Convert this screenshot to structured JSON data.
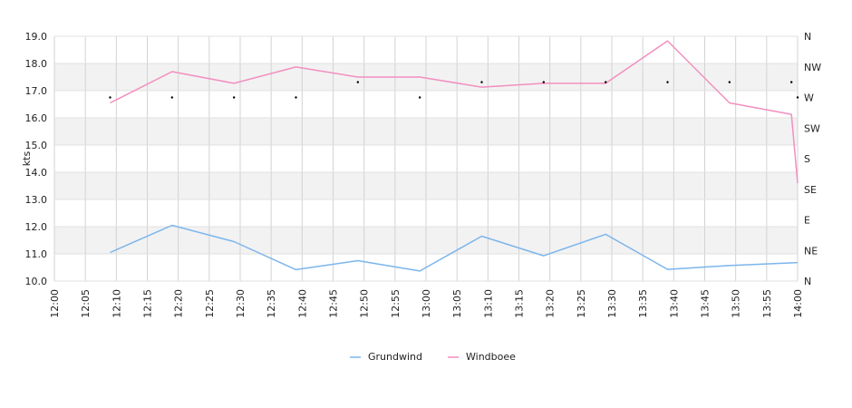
{
  "chart_data": {
    "type": "line",
    "ylabel": "kts",
    "ylim": [
      10,
      19
    ],
    "yticks": [
      "10.0",
      "11.0",
      "12.0",
      "13.0",
      "14.0",
      "15.0",
      "16.0",
      "17.0",
      "18.0",
      "19.0"
    ],
    "x_start": "12:00",
    "x_end": "14:00",
    "xticks": [
      "12:00",
      "12:05",
      "12:10",
      "12:15",
      "12:20",
      "12:25",
      "12:30",
      "12:35",
      "12:40",
      "12:45",
      "12:50",
      "12:55",
      "13:00",
      "13:05",
      "13:10",
      "13:15",
      "13:20",
      "13:25",
      "13:30",
      "13:35",
      "13:40",
      "13:45",
      "13:50",
      "13:55",
      "14:00"
    ],
    "direction_axis": [
      "N",
      "NE",
      "E",
      "SE",
      "S",
      "SW",
      "W",
      "NW",
      "N"
    ],
    "grid": true,
    "legend_position": "bottom",
    "series": [
      {
        "name": "Grundwind",
        "color": "#7cb5ec",
        "points": [
          {
            "x": "12:09",
            "y": 11.05
          },
          {
            "x": "12:19",
            "y": 12.05
          },
          {
            "x": "12:29",
            "y": 11.45
          },
          {
            "x": "12:39",
            "y": 10.42
          },
          {
            "x": "12:49",
            "y": 10.75
          },
          {
            "x": "12:59",
            "y": 10.37
          },
          {
            "x": "13:09",
            "y": 11.65
          },
          {
            "x": "13:19",
            "y": 10.93
          },
          {
            "x": "13:29",
            "y": 11.72
          },
          {
            "x": "13:39",
            "y": 10.43
          },
          {
            "x": "13:49",
            "y": 10.57
          },
          {
            "x": "14:00",
            "y": 10.68
          }
        ]
      },
      {
        "name": "Windboee",
        "color": "#f28fbf",
        "points": [
          {
            "x": "12:09",
            "y": 16.55
          },
          {
            "x": "12:19",
            "y": 17.7
          },
          {
            "x": "12:29",
            "y": 17.27
          },
          {
            "x": "12:39",
            "y": 17.87
          },
          {
            "x": "12:49",
            "y": 17.5
          },
          {
            "x": "12:59",
            "y": 17.5
          },
          {
            "x": "13:09",
            "y": 17.13
          },
          {
            "x": "13:19",
            "y": 17.27
          },
          {
            "x": "13:29",
            "y": 17.27
          },
          {
            "x": "13:39",
            "y": 18.83
          },
          {
            "x": "13:49",
            "y": 16.55
          },
          {
            "x": "13:59",
            "y": 16.13
          },
          {
            "x": "14:00",
            "y": 13.6
          }
        ]
      }
    ],
    "wind_direction": {
      "color": "#000000",
      "points": [
        {
          "x": "12:09",
          "dir": "W"
        },
        {
          "x": "12:19",
          "dir": "W"
        },
        {
          "x": "12:29",
          "dir": "W"
        },
        {
          "x": "12:39",
          "dir": "W"
        },
        {
          "x": "12:49",
          "dir": "W/NW"
        },
        {
          "x": "12:59",
          "dir": "W"
        },
        {
          "x": "13:09",
          "dir": "W/NW"
        },
        {
          "x": "13:19",
          "dir": "W/NW"
        },
        {
          "x": "13:29",
          "dir": "W/NW"
        },
        {
          "x": "13:39",
          "dir": "W/NW"
        },
        {
          "x": "13:49",
          "dir": "W/NW"
        },
        {
          "x": "13:59",
          "dir": "W/NW"
        },
        {
          "x": "14:00",
          "dir": "W"
        }
      ]
    }
  }
}
